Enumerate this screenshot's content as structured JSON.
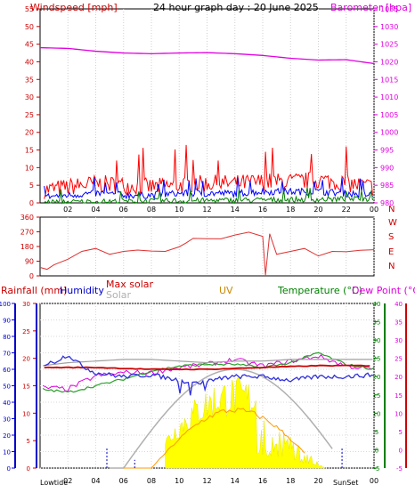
{
  "header": {
    "left_title": "Windspeed [mph]",
    "center_title": "24 hour graph day : 20 June 2025",
    "right_title": "Barometer [hpa]"
  },
  "panel3_labels": {
    "rainfall": "Rainfall (mm)",
    "humidity": "Humidity",
    "max_solar": "Max solar",
    "solar": "Solar",
    "uv": "UV",
    "temperature": "Temperature (°C)",
    "dew_point": "Dew Point (°C)",
    "lowtide": "Lowtide",
    "sunset": "SunSet"
  },
  "colors": {
    "wind": "#ff0000",
    "avg_wind": "#0000ff",
    "min_wind": "#008000",
    "barometer": "#e000e0",
    "direction": "#e03030",
    "temperature": "#cc0000",
    "dew_point": "#3030dd",
    "humidity_line": "#2aa02a",
    "solar_fill": "#ffff00",
    "solar_line": "#ff9900",
    "max_solar": "#b0b0b0",
    "grey_line": "#a0a0a0",
    "rain_axis": "#0000cc",
    "uv": "#cc8800"
  },
  "chart_data": [
    {
      "type": "line",
      "name": "wind-barometer",
      "x_ticks": [
        "02",
        "04",
        "06",
        "08",
        "10",
        "12",
        "14",
        "16",
        "18",
        "20",
        "22",
        "00"
      ],
      "y_left_ticks": [
        "0",
        "5",
        "10",
        "15",
        "20",
        "25",
        "30",
        "35",
        "40",
        "45",
        "50",
        "55"
      ],
      "y_right_ticks": [
        "980",
        "985",
        "990",
        "995",
        "1000",
        "1005",
        "1010",
        "1015",
        "1020",
        "1025",
        "1030",
        "1035"
      ],
      "ylim_left": [
        0,
        55
      ],
      "ylim_right": [
        980,
        1035
      ],
      "barometer": {
        "x": [
          0,
          2,
          4,
          6,
          8,
          10,
          12,
          14,
          16,
          18,
          20,
          22,
          24
        ],
        "y": [
          1024,
          1023.8,
          1023,
          1022.5,
          1022.3,
          1022.5,
          1022.6,
          1022.3,
          1021.8,
          1021,
          1020.5,
          1020.6,
          1019.5
        ]
      },
      "wind_gust_level": {
        "x": [
          0,
          2,
          4,
          6,
          8,
          10,
          12,
          14,
          16,
          18,
          20,
          22,
          24
        ],
        "y": [
          3,
          4,
          5,
          4.5,
          4,
          4.5,
          5,
          5,
          5.5,
          5.5,
          6,
          5,
          4
        ]
      },
      "wind_avg_level": {
        "x": [
          0,
          2,
          4,
          6,
          8,
          10,
          12,
          14,
          16,
          18,
          20,
          22,
          24
        ],
        "y": [
          1.5,
          2,
          2.5,
          2,
          2,
          2.5,
          2.5,
          2.5,
          3,
          3,
          3,
          2.5,
          2
        ]
      },
      "wind_min_level": {
        "x": [
          0,
          24
        ],
        "y": [
          0,
          1
        ]
      }
    },
    {
      "type": "line",
      "name": "wind-direction",
      "y_left_ticks": [
        "0",
        "90",
        "180",
        "270",
        "360"
      ],
      "y_right_ticks": [
        "N",
        "E",
        "S",
        "W",
        "N"
      ],
      "ylim": [
        0,
        360
      ],
      "x": [
        0,
        0.5,
        1,
        2,
        3,
        4,
        5,
        6,
        7,
        8,
        9,
        10,
        10.5,
        11,
        12,
        13,
        14,
        15,
        16,
        16.2,
        16.5,
        17,
        18,
        19,
        20,
        21,
        22,
        23,
        24
      ],
      "y": [
        60,
        40,
        60,
        110,
        150,
        160,
        140,
        150,
        150,
        160,
        150,
        170,
        210,
        230,
        220,
        235,
        250,
        260,
        250,
        5,
        250,
        140,
        150,
        160,
        130,
        150,
        140,
        165,
        160
      ]
    },
    {
      "type": "line",
      "name": "temperature-humidity-solar",
      "y_left_ticks": [
        "0",
        "10",
        "20",
        "30",
        "40",
        "50",
        "60",
        "70",
        "80",
        "90",
        "100"
      ],
      "y_rain_ticks": [
        "0",
        "5",
        "10",
        "15",
        "20",
        "25",
        "30"
      ],
      "y_right_ticks": [
        "-5",
        "0",
        "5",
        "10",
        "15",
        "20",
        "25",
        "30",
        "35",
        "40"
      ],
      "temperature_ylim": [
        -5,
        40
      ],
      "temperature": {
        "x": [
          0,
          4,
          8,
          12,
          16,
          20,
          24
        ],
        "y": [
          22.5,
          22.5,
          22,
          22,
          22.5,
          23,
          23
        ]
      },
      "dew_point": {
        "x": [
          0,
          1,
          2,
          3,
          4,
          6,
          8,
          10,
          11,
          12,
          14,
          16,
          18,
          20,
          22,
          24
        ],
        "y": [
          23,
          24,
          26,
          23,
          21,
          20,
          20.5,
          19,
          18,
          19,
          20,
          20,
          19,
          20,
          20,
          20.5
        ]
      },
      "humidity": {
        "x": [
          0,
          2,
          4,
          6,
          8,
          10,
          12,
          14,
          16,
          18,
          20,
          22,
          24
        ],
        "y": [
          49,
          48,
          56,
          58,
          58,
          61,
          63,
          66,
          62,
          65,
          68,
          62,
          60
        ]
      },
      "solar_peak_hour": 14
    }
  ]
}
